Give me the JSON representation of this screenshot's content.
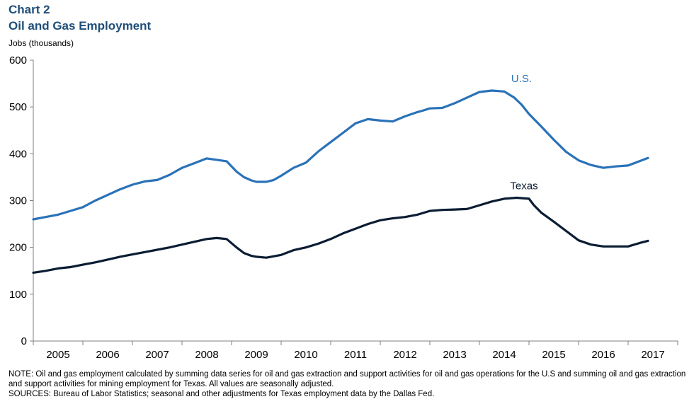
{
  "header": {
    "chart_label": "Chart 2",
    "title": "Oil and Gas Employment",
    "y_unit": "Jobs (thousands)"
  },
  "footer": {
    "note": "NOTE: Oil and gas employment calculated by summing data series for oil and gas extraction and support activities for oil and gas operations for the U.S and summing oil and gas extraction and support activities for mining employment for Texas. All values are seasonally adjusted.",
    "sources": "SOURCES: Bureau of Labor Statistics; seasonal and other adjustments for Texas employment data by the Dallas Fed."
  },
  "chart_data": {
    "type": "line",
    "title": "Oil and Gas Employment",
    "ylabel": "Jobs (thousands)",
    "xlabel": "",
    "ylim": [
      0,
      600
    ],
    "xlim": [
      2004.5,
      2017.5
    ],
    "y_ticks": [
      0,
      100,
      200,
      300,
      400,
      500,
      600
    ],
    "x_ticks": [
      "2005",
      "2006",
      "2007",
      "2008",
      "2009",
      "2010",
      "2011",
      "2012",
      "2013",
      "2014",
      "2015",
      "2016",
      "2017"
    ],
    "grid": false,
    "legend": "inline labels",
    "series": [
      {
        "name": "U.S.",
        "color": "#2a72b8",
        "x": [
          2004.5,
          2004.75,
          2005.0,
          2005.25,
          2005.5,
          2005.75,
          2006.0,
          2006.25,
          2006.5,
          2006.75,
          2007.0,
          2007.25,
          2007.5,
          2007.75,
          2008.0,
          2008.2,
          2008.4,
          2008.6,
          2008.75,
          2008.9,
          2009.0,
          2009.2,
          2009.35,
          2009.5,
          2009.75,
          2010.0,
          2010.25,
          2010.5,
          2010.75,
          2011.0,
          2011.25,
          2011.5,
          2011.75,
          2012.0,
          2012.25,
          2012.35,
          2012.5,
          2012.75,
          2013.0,
          2013.25,
          2013.5,
          2013.75,
          2014.0,
          2014.2,
          2014.35,
          2014.5,
          2014.75,
          2015.0,
          2015.25,
          2015.5,
          2015.75,
          2016.0,
          2016.25,
          2016.5,
          2016.75,
          2016.9
        ],
        "values": [
          260,
          265,
          270,
          278,
          286,
          300,
          312,
          324,
          334,
          341,
          344,
          355,
          370,
          380,
          390,
          387,
          384,
          362,
          350,
          343,
          340,
          340,
          344,
          353,
          370,
          381,
          405,
          425,
          445,
          465,
          474,
          471,
          469,
          480,
          489,
          492,
          497,
          498,
          508,
          520,
          532,
          535,
          533,
          520,
          505,
          485,
          458,
          430,
          404,
          386,
          376,
          370,
          373,
          375,
          385,
          391
        ]
      },
      {
        "name": "Texas",
        "color": "#0b1d33",
        "x": [
          2004.5,
          2004.75,
          2005.0,
          2005.25,
          2005.5,
          2005.75,
          2006.0,
          2006.25,
          2006.5,
          2006.75,
          2007.0,
          2007.25,
          2007.5,
          2007.75,
          2008.0,
          2008.2,
          2008.4,
          2008.6,
          2008.75,
          2008.9,
          2009.0,
          2009.2,
          2009.5,
          2009.75,
          2010.0,
          2010.25,
          2010.5,
          2010.75,
          2011.0,
          2011.25,
          2011.5,
          2011.75,
          2012.0,
          2012.25,
          2012.5,
          2012.75,
          2013.0,
          2013.25,
          2013.5,
          2013.75,
          2014.0,
          2014.25,
          2014.5,
          2014.6,
          2014.75,
          2015.0,
          2015.25,
          2015.5,
          2015.75,
          2016.0,
          2016.25,
          2016.5,
          2016.75,
          2016.9
        ],
        "values": [
          146,
          150,
          155,
          158,
          163,
          168,
          174,
          180,
          185,
          190,
          195,
          200,
          206,
          212,
          218,
          220,
          218,
          200,
          188,
          182,
          180,
          178,
          184,
          194,
          200,
          208,
          218,
          230,
          240,
          250,
          258,
          262,
          265,
          270,
          278,
          280,
          281,
          282,
          290,
          298,
          304,
          306,
          304,
          290,
          274,
          255,
          235,
          215,
          206,
          202,
          202,
          202,
          210,
          214
        ]
      }
    ],
    "series_labels": [
      {
        "series": "U.S.",
        "x": 2014.35,
        "y": 553
      },
      {
        "series": "Texas",
        "x": 2014.4,
        "y": 324
      }
    ]
  }
}
